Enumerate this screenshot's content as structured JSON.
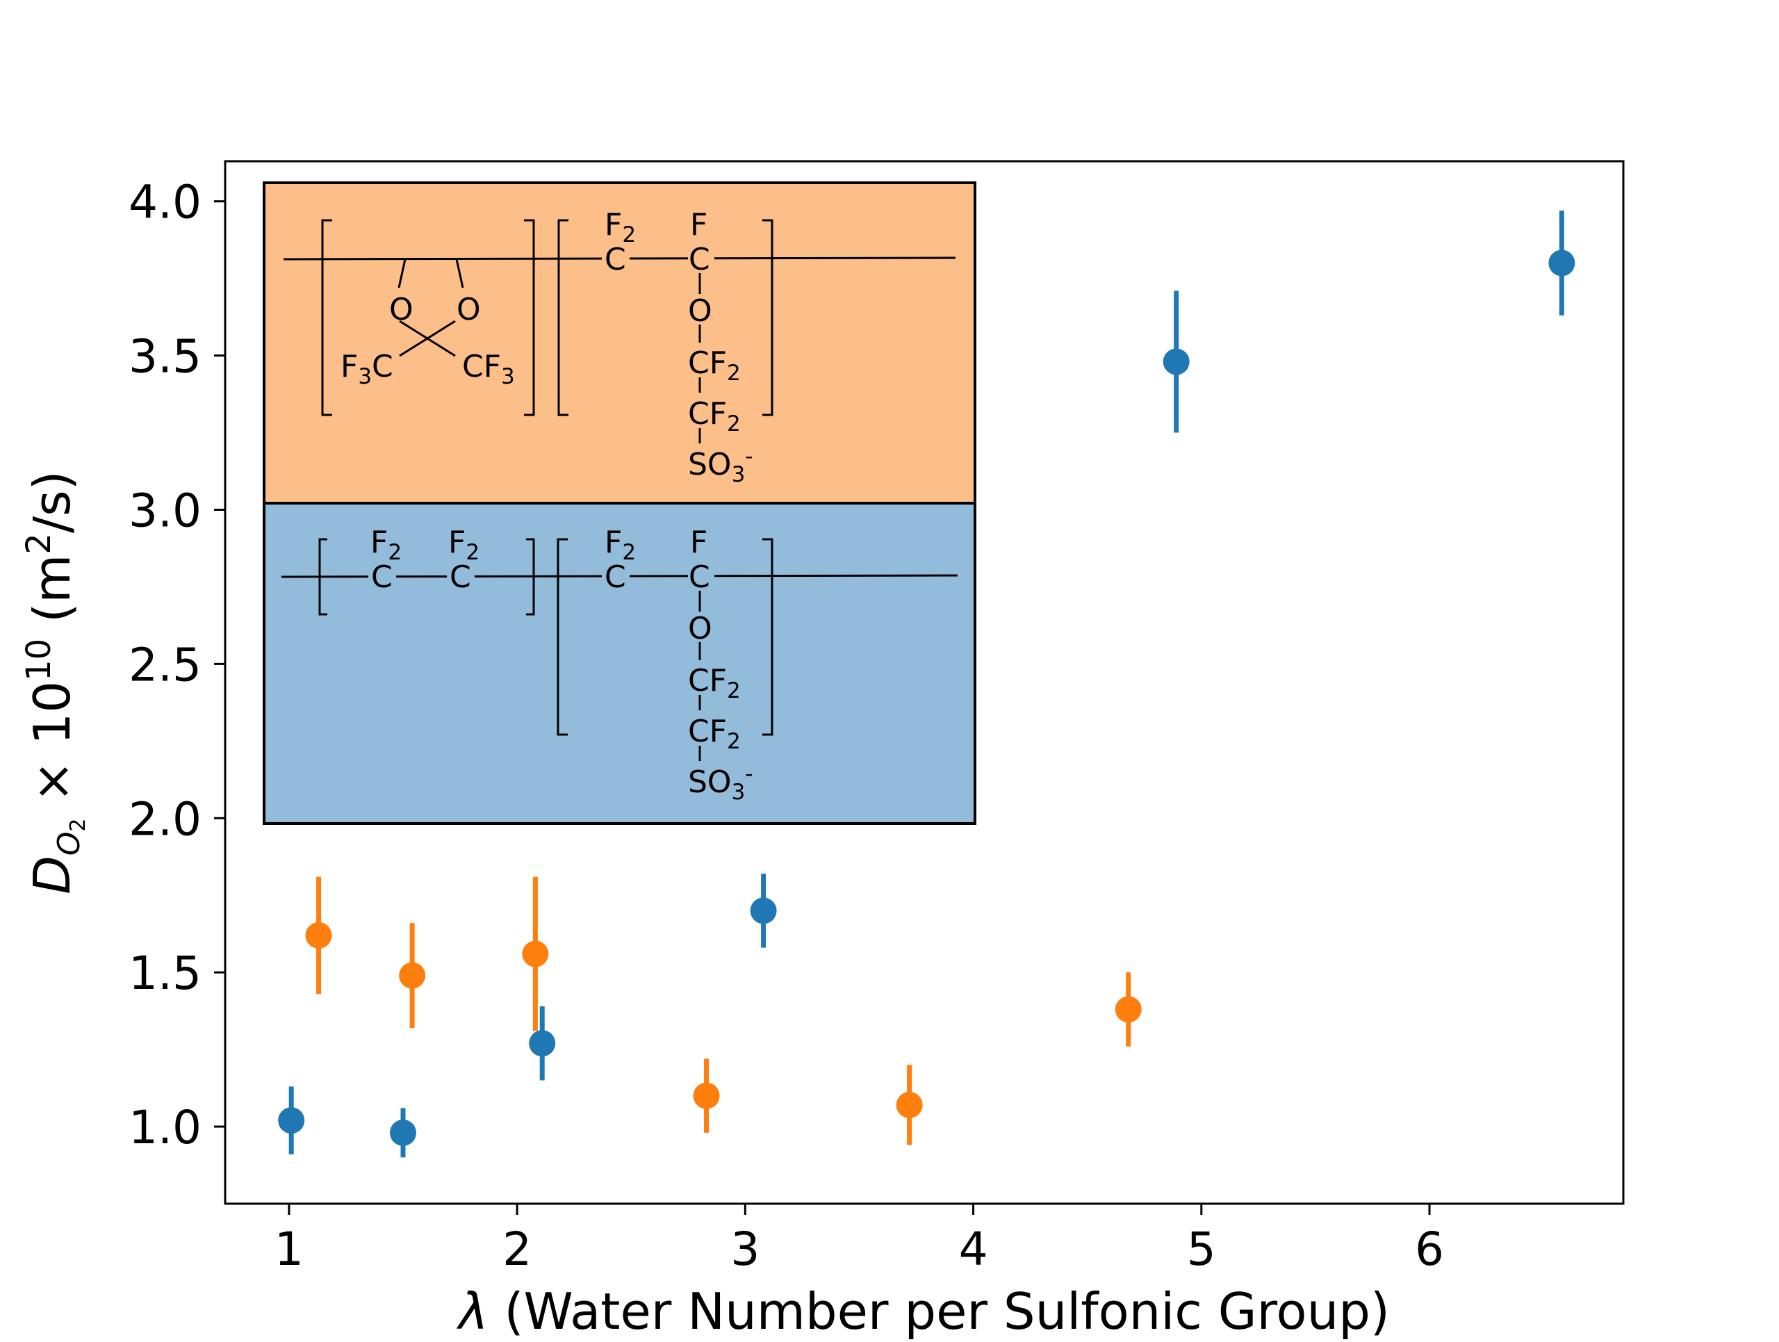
{
  "chart_data": {
    "type": "scatter",
    "xlabel": {
      "symbol": "λ",
      "text": " (Water Number per Sulfonic Group)"
    },
    "ylabel": {
      "symbol": "D",
      "subscript": "O",
      "subsubscript": "2",
      "times": " × 10",
      "exponent": "10",
      "unit_open": " (m",
      "unit_exp": "2",
      "unit_close": "/s)"
    },
    "xlim": [
      0.72,
      6.85
    ],
    "ylim": [
      0.75,
      4.13
    ],
    "xticks": [
      1,
      2,
      3,
      4,
      5,
      6
    ],
    "xtick_labels": [
      "1",
      "2",
      "3",
      "4",
      "5",
      "6"
    ],
    "yticks": [
      1.0,
      1.5,
      2.0,
      2.5,
      3.0,
      3.5,
      4.0
    ],
    "ytick_labels": [
      "1.0",
      "1.5",
      "2.0",
      "2.5",
      "3.0",
      "3.5",
      "4.0"
    ],
    "grid": false,
    "legend": null,
    "series": [
      {
        "color": "#1f77b4",
        "points": [
          {
            "x": 1.01,
            "y": 1.02,
            "err": 0.11
          },
          {
            "x": 1.5,
            "y": 0.98,
            "err": 0.08
          },
          {
            "x": 2.11,
            "y": 1.27,
            "err": 0.12
          },
          {
            "x": 3.08,
            "y": 1.7,
            "err": 0.12
          },
          {
            "x": 4.89,
            "y": 3.48,
            "err": 0.23
          },
          {
            "x": 6.58,
            "y": 3.8,
            "err": 0.17
          }
        ]
      },
      {
        "color": "#ff7f0e",
        "points": [
          {
            "x": 1.13,
            "y": 1.62,
            "err": 0.19
          },
          {
            "x": 1.54,
            "y": 1.49,
            "err": 0.17
          },
          {
            "x": 2.08,
            "y": 1.56,
            "err": 0.25
          },
          {
            "x": 2.83,
            "y": 1.1,
            "err": 0.12
          },
          {
            "x": 3.72,
            "y": 1.07,
            "err": 0.13
          },
          {
            "x": 4.68,
            "y": 1.38,
            "err": 0.12
          }
        ]
      }
    ]
  },
  "inset": {
    "top_color": "#fdbf8a",
    "bottom_color": "#93bcda",
    "top": {
      "O_left": "O",
      "O_right": "O",
      "F3C": {
        "a": "F",
        "sub": "3",
        "b": "C"
      },
      "CF3": {
        "a": "CF",
        "sub": "3"
      },
      "F2_label": {
        "a": "F",
        "sub": "2"
      },
      "C1": "C",
      "F_label": "F",
      "C2": "C",
      "O_side": "O",
      "CF2_a": {
        "a": "CF",
        "sub": "2"
      },
      "CF2_b": {
        "a": "CF",
        "sub": "2"
      },
      "SO3": {
        "a": "SO",
        "sub": "3",
        "sup": "-"
      }
    },
    "bottom": {
      "F2_1": {
        "a": "F",
        "sub": "2"
      },
      "C_1": "C",
      "F2_2": {
        "a": "F",
        "sub": "2"
      },
      "C_2": "C",
      "F2_3": {
        "a": "F",
        "sub": "2"
      },
      "C_3": "C",
      "F_label": "F",
      "C_4": "C",
      "O_side": "O",
      "CF2_a": {
        "a": "CF",
        "sub": "2"
      },
      "CF2_b": {
        "a": "CF",
        "sub": "2"
      },
      "SO3": {
        "a": "SO",
        "sub": "3",
        "sup": "-"
      }
    }
  }
}
